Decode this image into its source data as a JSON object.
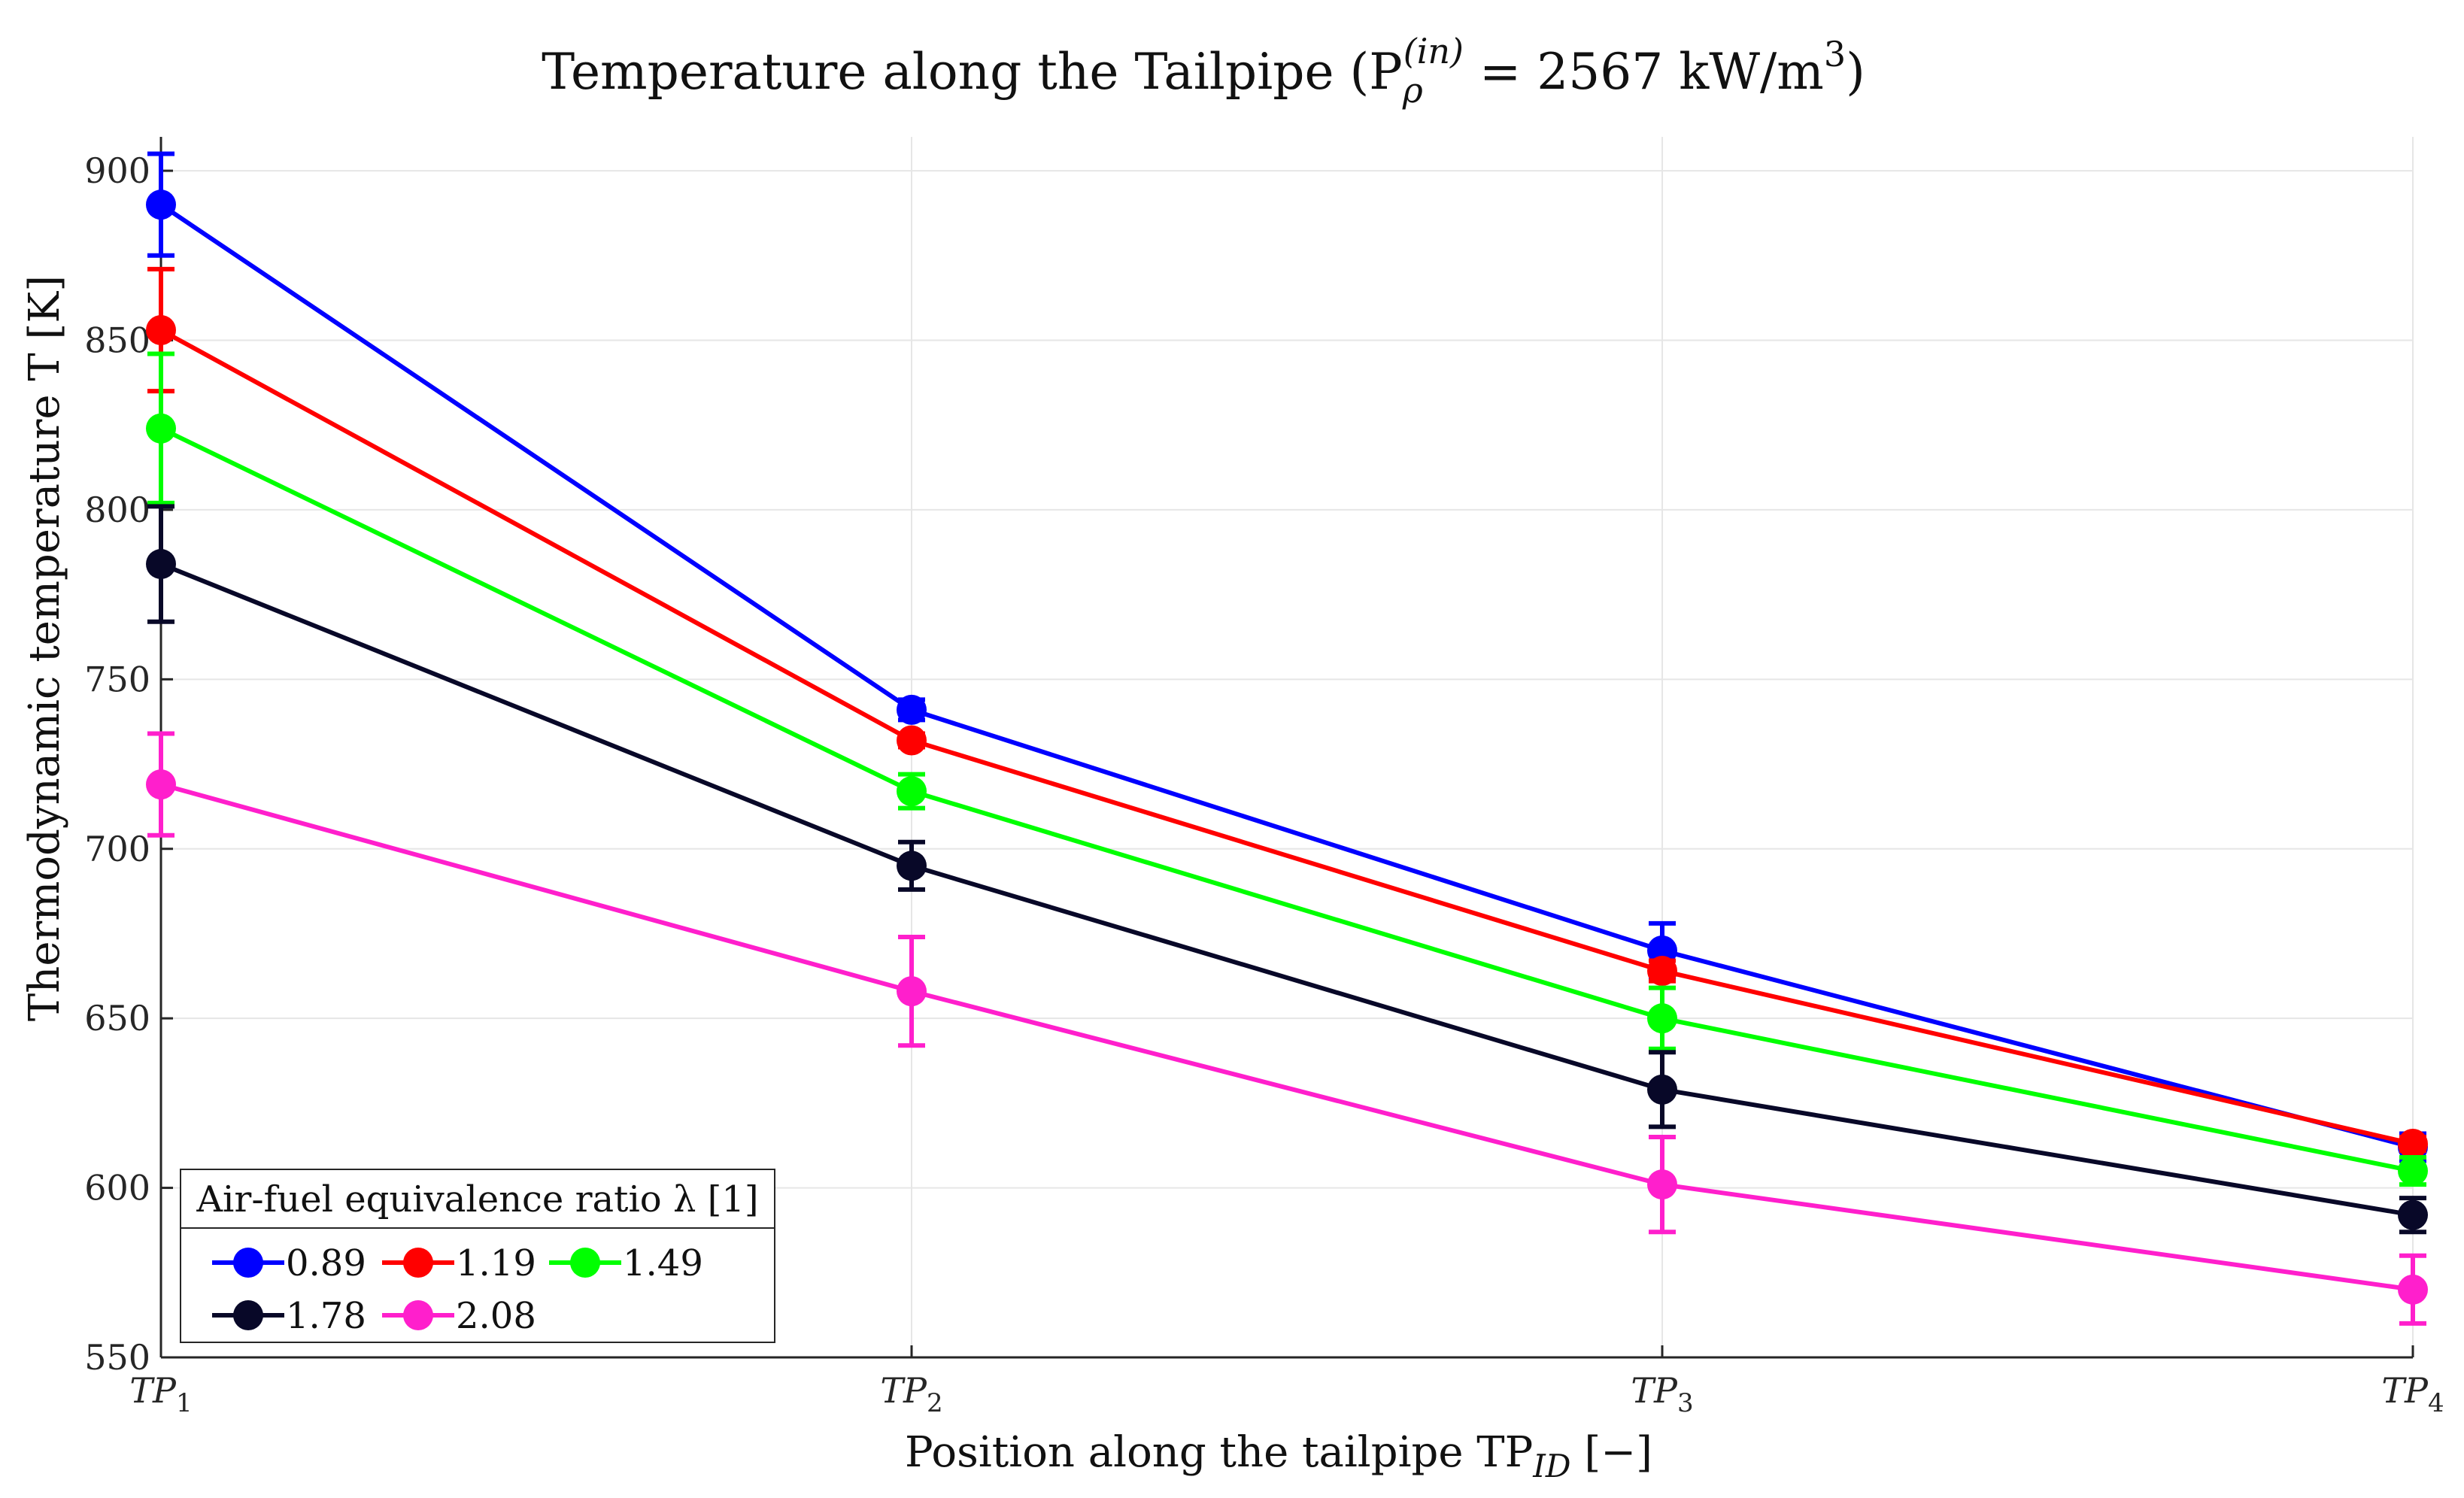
{
  "chart_data": {
    "type": "line",
    "title": "Temperature along the Tailpipe (P",
    "title_sub": "ρ",
    "title_sup": "(in)",
    "title_rest": " = 2567 kW/m",
    "title_exp": "3",
    "title_close": ")",
    "xlabel": "Position along the tailpipe TP",
    "xlabel_sub": "ID",
    "xlabel_unit": " [−]",
    "ylabel": "Thermodynamic temperature T  [K]",
    "categories": [
      "TP1",
      "TP2",
      "TP3",
      "TP4"
    ],
    "category_labels": [
      {
        "base": "TP",
        "sub": "1"
      },
      {
        "base": "TP",
        "sub": "2"
      },
      {
        "base": "TP",
        "sub": "3"
      },
      {
        "base": "TP",
        "sub": "4"
      }
    ],
    "ylim": [
      550,
      910
    ],
    "yticks": [
      550,
      600,
      650,
      700,
      750,
      800,
      850,
      900
    ],
    "grid": true,
    "legend_position": "bottom-left",
    "legend_title": "Air-fuel equivalence ratio λ [1]",
    "series": [
      {
        "name": "0.89",
        "color": "#0000ff",
        "values": [
          890,
          741,
          670,
          612
        ],
        "err": [
          15,
          3,
          8,
          4
        ]
      },
      {
        "name": "1.19",
        "color": "#ff0000",
        "values": [
          853,
          732,
          664,
          613
        ],
        "err": [
          18,
          2,
          3,
          2
        ]
      },
      {
        "name": "1.49",
        "color": "#00ff00",
        "values": [
          824,
          717,
          650,
          605
        ],
        "err": [
          22,
          5,
          9,
          4
        ]
      },
      {
        "name": "1.78",
        "color": "#080828",
        "values": [
          784,
          695,
          629,
          592
        ],
        "err": [
          17,
          7,
          11,
          5
        ]
      },
      {
        "name": "2.08",
        "color": "#ff1fcc",
        "values": [
          719,
          658,
          601,
          570
        ],
        "err": [
          15,
          16,
          14,
          10
        ]
      }
    ]
  }
}
